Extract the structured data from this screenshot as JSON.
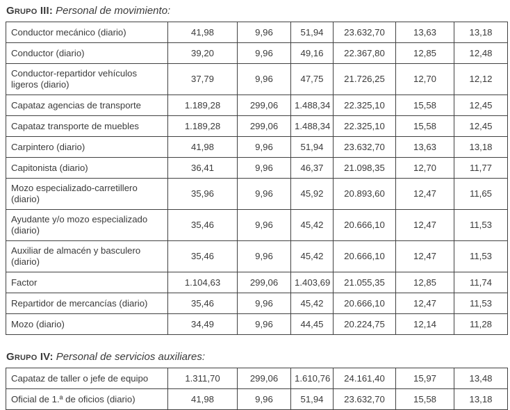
{
  "page": {
    "background": "#ffffff",
    "text_color": "#3a3a3a",
    "border_color": "#404040"
  },
  "sections": [
    {
      "heading": {
        "label": "Grupo III:",
        "title": "Personal de movimiento:"
      },
      "rows": [
        {
          "label": "Conductor mecánico (diario)",
          "values": [
            "41,98",
            "9,96",
            "51,94",
            "23.632,70",
            "13,63",
            "13,18"
          ]
        },
        {
          "label": "Conductor (diario)",
          "values": [
            "39,20",
            "9,96",
            "49,16",
            "22.367,80",
            "12,85",
            "12,48"
          ]
        },
        {
          "label": "Conductor-repartidor vehículos ligeros (diario)",
          "values": [
            "37,79",
            "9,96",
            "47,75",
            "21.726,25",
            "12,70",
            "12,12"
          ]
        },
        {
          "label": "Capataz agencias de transporte",
          "values": [
            "1.189,28",
            "299,06",
            "1.488,34",
            "22.325,10",
            "15,58",
            "12,45"
          ]
        },
        {
          "label": "Capataz transporte de muebles",
          "values": [
            "1.189,28",
            "299,06",
            "1.488,34",
            "22.325,10",
            "15,58",
            "12,45"
          ]
        },
        {
          "label": "Carpintero (diario)",
          "values": [
            "41,98",
            "9,96",
            "51,94",
            "23.632,70",
            "13,63",
            "13,18"
          ]
        },
        {
          "label": "Capitonista (diario)",
          "values": [
            "36,41",
            "9,96",
            "46,37",
            "21.098,35",
            "12,70",
            "11,77"
          ]
        },
        {
          "label": "Mozo especializado-carretillero (diario)",
          "values": [
            "35,96",
            "9,96",
            "45,92",
            "20.893,60",
            "12,47",
            "11,65"
          ]
        },
        {
          "label": "Ayudante y/o mozo especializado (diario)",
          "values": [
            "35,46",
            "9,96",
            "45,42",
            "20.666,10",
            "12,47",
            "11,53"
          ]
        },
        {
          "label": "Auxiliar de almacén y basculero (diario)",
          "values": [
            "35,46",
            "9,96",
            "45,42",
            "20.666,10",
            "12,47",
            "11,53"
          ]
        },
        {
          "label": "Factor",
          "values": [
            "1.104,63",
            "299,06",
            "1.403,69",
            "21.055,35",
            "12,85",
            "11,74"
          ]
        },
        {
          "label": "Repartidor de mercancías (diario)",
          "values": [
            "35,46",
            "9,96",
            "45,42",
            "20.666,10",
            "12,47",
            "11,53"
          ]
        },
        {
          "label": "Mozo (diario)",
          "values": [
            "34,49",
            "9,96",
            "44,45",
            "20.224,75",
            "12,14",
            "11,28"
          ]
        }
      ]
    },
    {
      "heading": {
        "label": "Grupo IV:",
        "title": "Personal de servicios auxiliares:"
      },
      "rows": [
        {
          "label": "Capataz de taller o jefe de equipo",
          "values": [
            "1.311,70",
            "299,06",
            "1.610,76",
            "24.161,40",
            "15,97",
            "13,48"
          ]
        },
        {
          "label": "Oficial de 1.ª de oficios (diario)",
          "values": [
            "41,98",
            "9,96",
            "51,94",
            "23.632,70",
            "15,58",
            "13,18"
          ]
        }
      ]
    }
  ]
}
